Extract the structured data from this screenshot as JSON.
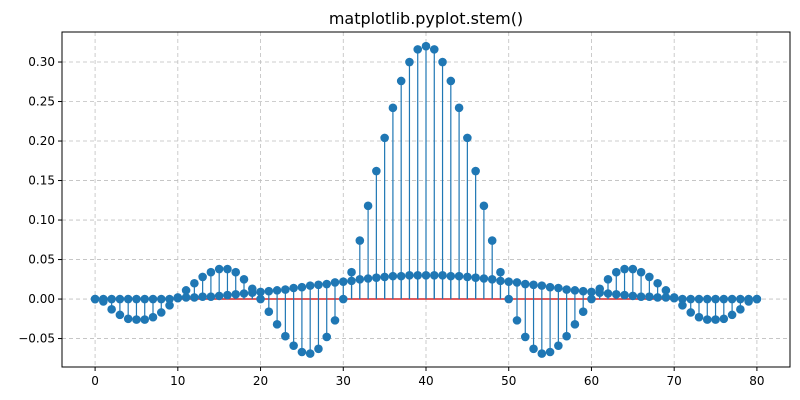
{
  "chart_data": {
    "type": "stem",
    "title": "matplotlib.pyplot.stem()",
    "xlabel": "",
    "ylabel": "",
    "xlim": [
      -4,
      84
    ],
    "ylim": [
      -0.086,
      0.338
    ],
    "x_ticks": [
      0,
      10,
      20,
      30,
      40,
      50,
      60,
      70,
      80
    ],
    "y_ticks": [
      -0.05,
      0.0,
      0.05,
      0.1,
      0.15,
      0.2,
      0.25,
      0.3
    ],
    "x_tick_labels": [
      "0",
      "10",
      "20",
      "30",
      "40",
      "50",
      "60",
      "70",
      "80"
    ],
    "y_tick_labels": [
      "−0.05",
      "0.00",
      "0.05",
      "0.10",
      "0.15",
      "0.20",
      "0.25",
      "0.30"
    ],
    "grid": true,
    "baseline": 0.0,
    "colors": {
      "stem": "#1f77b4",
      "marker": "#1f77b4",
      "baseline": "#d62728",
      "grid": "#bfbfbf"
    },
    "series": [
      {
        "values": [
          0.0,
          0.0,
          0.0,
          0.0,
          0.0,
          0.0,
          0.0,
          0.0,
          0.0,
          0.0,
          0.001,
          0.002,
          0.002,
          0.003,
          0.003,
          0.004,
          0.005,
          0.006,
          0.007,
          0.008,
          0.009,
          0.01,
          0.011,
          0.012,
          0.014,
          0.015,
          0.017,
          0.018,
          0.019,
          0.021,
          0.022,
          0.023,
          0.025,
          0.026,
          0.027,
          0.028,
          0.029,
          0.029,
          0.03,
          0.03,
          0.03,
          0.03,
          0.03,
          0.029,
          0.029,
          0.028,
          0.027,
          0.026,
          0.025,
          0.023,
          0.022,
          0.021,
          0.019,
          0.018,
          0.017,
          0.015,
          0.014,
          0.012,
          0.011,
          0.01,
          0.009,
          0.008,
          0.007,
          0.006,
          0.005,
          0.004,
          0.003,
          0.003,
          0.002,
          0.002,
          0.001,
          0.0,
          0.0,
          0.0,
          0.0,
          0.0,
          0.0,
          0.0,
          0.0,
          0.0,
          0.0
        ]
      },
      {
        "values": [
          0.0,
          -0.003,
          -0.013,
          -0.02,
          -0.025,
          -0.026,
          -0.026,
          -0.023,
          -0.017,
          -0.008,
          0.002,
          0.011,
          0.02,
          0.028,
          0.034,
          0.038,
          0.038,
          0.034,
          0.025,
          0.013,
          0.0,
          -0.016,
          -0.032,
          -0.047,
          -0.059,
          -0.067,
          -0.069,
          -0.063,
          -0.048,
          -0.027,
          0.0,
          0.034,
          0.074,
          0.118,
          0.162,
          0.204,
          0.242,
          0.276,
          0.3,
          0.316,
          0.32,
          0.316,
          0.3,
          0.276,
          0.242,
          0.204,
          0.162,
          0.118,
          0.074,
          0.034,
          0.0,
          -0.027,
          -0.048,
          -0.063,
          -0.069,
          -0.067,
          -0.059,
          -0.047,
          -0.032,
          -0.016,
          0.0,
          0.013,
          0.025,
          0.034,
          0.038,
          0.038,
          0.034,
          0.028,
          0.02,
          0.011,
          0.002,
          -0.008,
          -0.017,
          -0.023,
          -0.026,
          -0.026,
          -0.025,
          -0.02,
          -0.013,
          -0.003,
          0.0
        ]
      }
    ]
  }
}
